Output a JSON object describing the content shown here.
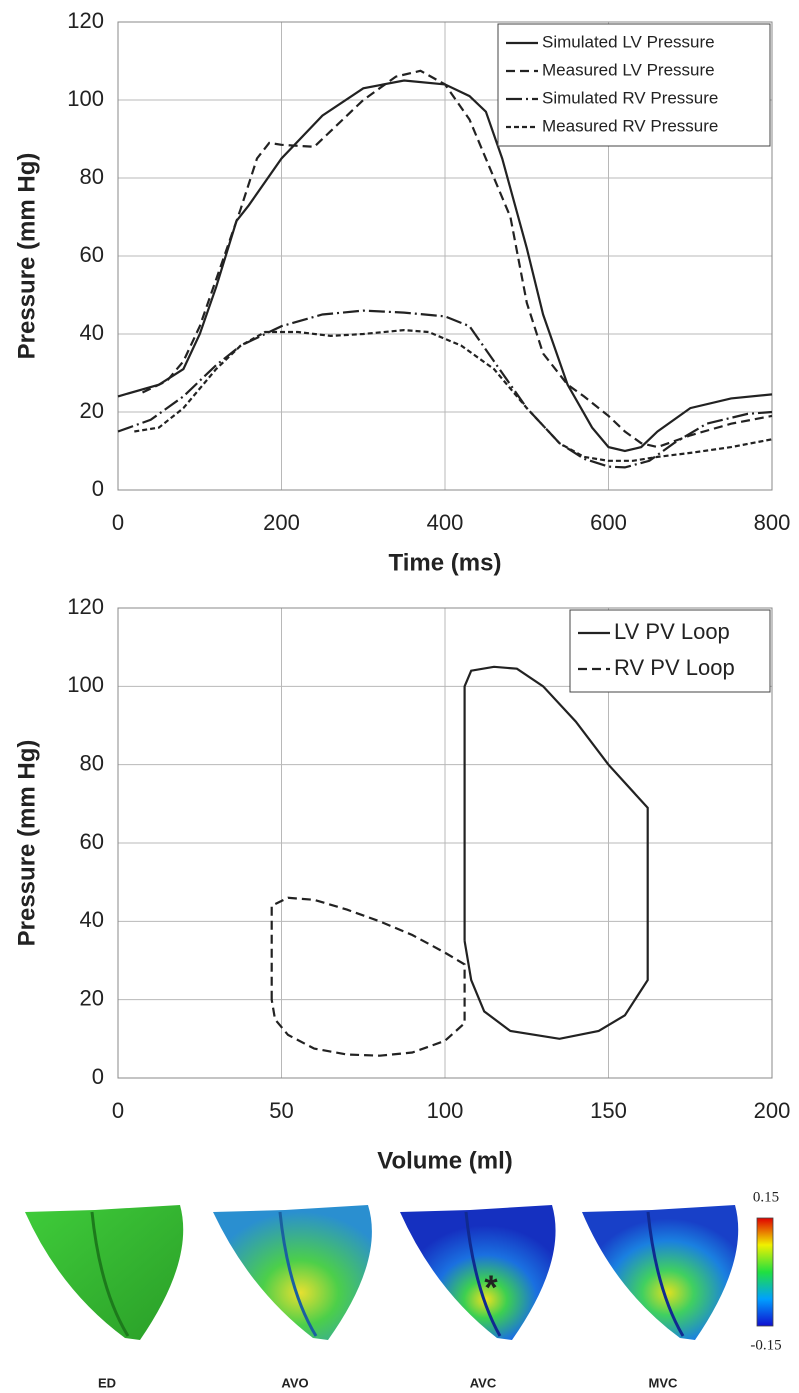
{
  "chart_data": [
    {
      "type": "line",
      "xlabel": "Time (ms)",
      "ylabel": "Pressure (mm Hg)",
      "xlim": [
        0,
        800
      ],
      "xticks": [
        0,
        200,
        400,
        600,
        800
      ],
      "ylim": [
        0,
        120
      ],
      "yticks": [
        0,
        20,
        40,
        60,
        80,
        100,
        120
      ],
      "grid": true,
      "legend": "upper right",
      "series": [
        {
          "name": "Simulated LV Pressure",
          "color": "#222222",
          "dash": "solid",
          "x": [
            0,
            50,
            80,
            100,
            120,
            145,
            160,
            200,
            250,
            300,
            350,
            400,
            430,
            450,
            470,
            500,
            520,
            550,
            580,
            600,
            620,
            640,
            660,
            700,
            750,
            800
          ],
          "values": [
            24,
            27,
            31,
            40,
            52,
            69,
            73,
            85,
            96,
            103,
            105,
            104,
            101,
            97,
            85,
            62,
            45,
            27,
            16,
            11,
            10,
            11,
            15,
            21,
            23.5,
            24.5
          ]
        },
        {
          "name": "Measured LV Pressure",
          "color": "#222222",
          "dash": "dashed",
          "x": [
            30,
            60,
            80,
            100,
            130,
            150,
            170,
            185,
            200,
            240,
            260,
            300,
            340,
            370,
            400,
            430,
            460,
            480,
            500,
            520,
            550,
            570,
            600,
            620,
            640,
            660,
            700,
            750,
            800
          ],
          "values": [
            25,
            28,
            33,
            42,
            60,
            72,
            85,
            89,
            88.5,
            88,
            92,
            100,
            106,
            107.5,
            104,
            95,
            80,
            70,
            48,
            35,
            27,
            24,
            19,
            15,
            12,
            11,
            14,
            17,
            19
          ]
        },
        {
          "name": "Simulated RV Pressure",
          "color": "#222222",
          "dash": "dashdot",
          "x": [
            0,
            40,
            80,
            120,
            150,
            200,
            250,
            300,
            350,
            400,
            430,
            460,
            500,
            540,
            570,
            600,
            620,
            650,
            680,
            720,
            770,
            800
          ],
          "values": [
            15,
            18,
            24,
            32,
            37,
            42,
            45,
            46,
            45.5,
            44.5,
            42,
            33,
            21,
            12,
            8,
            6,
            5.8,
            7.5,
            12,
            17,
            19.5,
            20
          ]
        },
        {
          "name": "Measured RV Pressure",
          "color": "#222222",
          "dash": "dotted",
          "x": [
            20,
            50,
            80,
            120,
            150,
            180,
            220,
            260,
            300,
            350,
            380,
            420,
            460,
            500,
            540,
            570,
            600,
            630,
            660,
            700,
            750,
            800
          ],
          "values": [
            15,
            16,
            21,
            31,
            37,
            40.5,
            40.5,
            39.5,
            40,
            41,
            40.5,
            37,
            31,
            21,
            12,
            8.5,
            7.5,
            7.5,
            8.5,
            9.5,
            11,
            13
          ]
        }
      ]
    },
    {
      "type": "line",
      "xlabel": "Volume (ml)",
      "ylabel": "Pressure (mm Hg)",
      "xlim": [
        0,
        200
      ],
      "xticks": [
        0,
        50,
        100,
        150,
        200
      ],
      "ylim": [
        0,
        120
      ],
      "yticks": [
        0,
        20,
        40,
        60,
        80,
        100,
        120
      ],
      "grid": true,
      "legend": "upper right",
      "series": [
        {
          "name": "LV PV Loop",
          "color": "#222222",
          "dash": "solid",
          "x": [
            106,
            106,
            108,
            115,
            122,
            130,
            140,
            150,
            162,
            162,
            155,
            147,
            135,
            120,
            112,
            108,
            106
          ],
          "values": [
            35,
            100,
            104,
            105,
            104.5,
            100,
            91,
            80,
            69,
            25,
            16,
            12,
            10,
            12,
            17,
            25,
            35
          ]
        },
        {
          "name": "RV PV Loop",
          "color": "#222222",
          "dash": "dashed",
          "x": [
            47,
            47,
            52,
            60,
            70,
            80,
            90,
            100,
            106,
            106,
            100,
            90,
            80,
            70,
            60,
            52,
            48,
            47
          ],
          "values": [
            20,
            44,
            46,
            45.5,
            43,
            40,
            36.5,
            32,
            29,
            14,
            9.5,
            6.5,
            5.7,
            6,
            7.5,
            11,
            15,
            20
          ]
        }
      ]
    }
  ],
  "strain_panel": {
    "labels": [
      "ED",
      "AVO",
      "AVC",
      "MVC"
    ],
    "annotation": "*",
    "colorbar_lim": [
      -0.15,
      0.15
    ]
  }
}
